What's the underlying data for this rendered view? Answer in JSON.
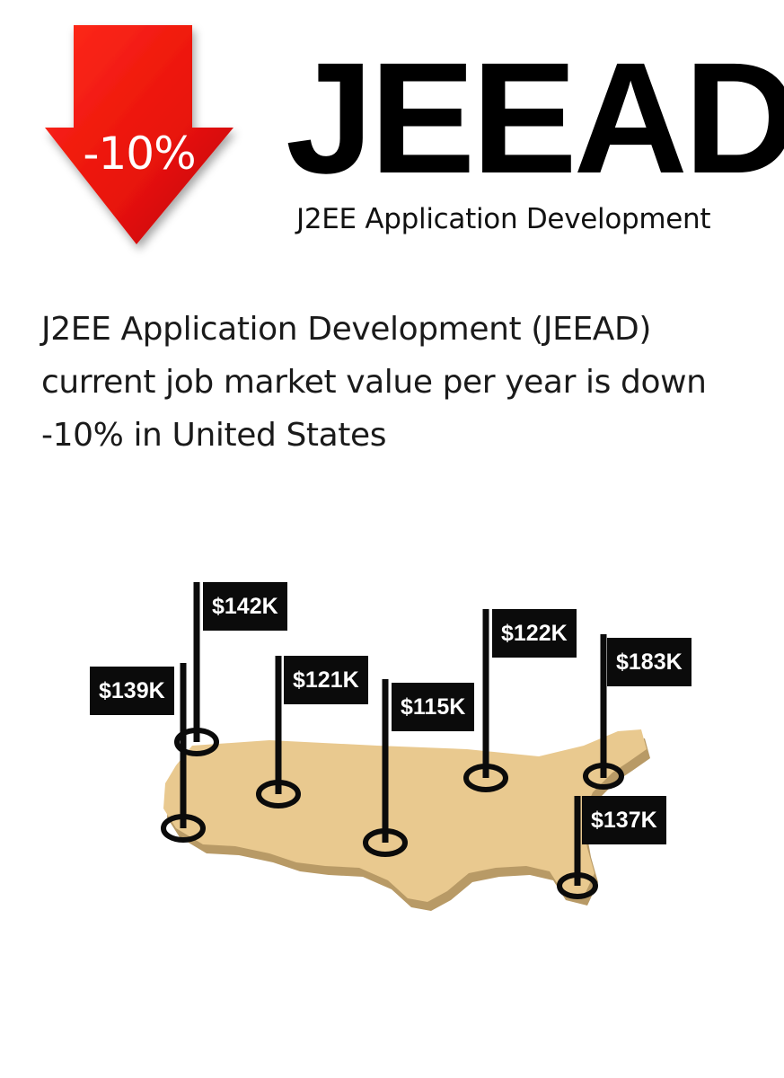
{
  "badge": {
    "change_text": "-10%",
    "arrow_icon": "down-arrow-icon",
    "arrow_color": "#e8120a"
  },
  "header": {
    "acronym": "JEEAD",
    "subtitle": "J2EE Application Development"
  },
  "description": {
    "line1": "J2EE Application Development (JEEAD)",
    "line2": "current job market value per year is down",
    "line3": "-10% in United States"
  },
  "map": {
    "icon": "us-map-icon",
    "land_color": "#e9c98f",
    "pins": [
      {
        "value": "$142K"
      },
      {
        "value": "$139K"
      },
      {
        "value": "$121K"
      },
      {
        "value": "$115K"
      },
      {
        "value": "$122K"
      },
      {
        "value": "$183K"
      },
      {
        "value": "$137K"
      }
    ]
  }
}
